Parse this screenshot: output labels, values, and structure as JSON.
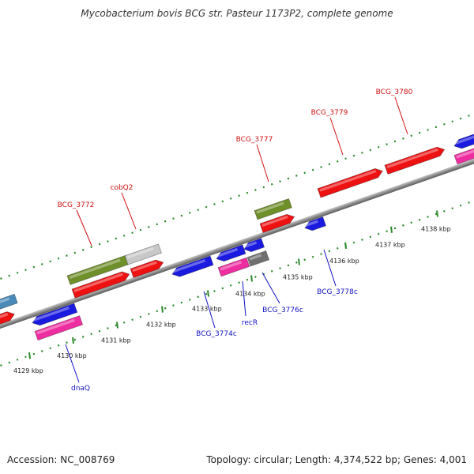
{
  "title": "Mycobacterium bovis BCG str. Pasteur 1173P2, complete genome",
  "footer": {
    "accession": "Accession: NC_008769",
    "topology": "Topology: circular; Length: 4,374,522 bp; Genes: 4,001"
  },
  "colors": {
    "backbone": "#8c8c8c",
    "tick": "#2a8a2a",
    "label_forward": "#d01010",
    "label_reverse": "#1010c0",
    "cds": "#ee1111",
    "gene": "#6f8f2a",
    "pseudo": "#c8c8c8",
    "rev_cds": "#1a1ae0",
    "rev_gene": "#ee2da0",
    "rev_pseudo": "#707070",
    "other": "#4a8ab8"
  },
  "scale": {
    "tick_labels": [
      "4129 kbp",
      "4130 kbp",
      "4131 kbp",
      "4132 kbp",
      "4133 kbp",
      "4134 kbp",
      "4135 kbp",
      "4136 kbp",
      "4137 kbp",
      "4138 kbp"
    ]
  },
  "gene_labels": {
    "forward": [
      "BCG_3772",
      "cobQ2",
      "BCG_3777",
      "BCG_3779",
      "BCG_3780"
    ],
    "reverse": [
      "dnaQ",
      "BCG_3774c",
      "recR",
      "BCG_3776c",
      "BCG_3778c"
    ]
  }
}
